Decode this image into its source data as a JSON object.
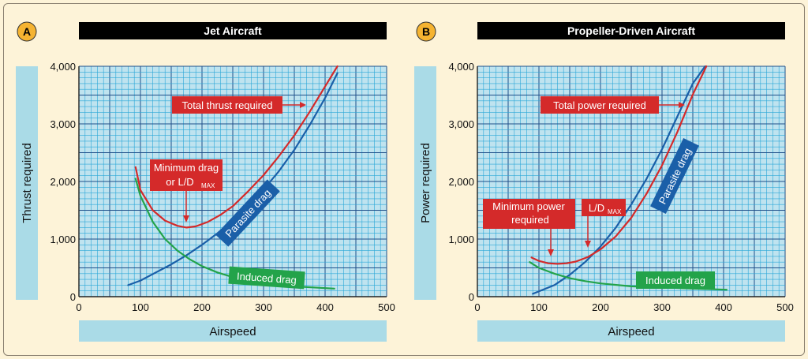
{
  "chart_data": [
    {
      "badge": "A",
      "type": "line",
      "title": "Jet Aircraft",
      "xlabel": "Airspeed",
      "ylabel": "Thrust required",
      "xlim": [
        0,
        500
      ],
      "ylim": [
        0,
        4000
      ],
      "x_ticks": [
        "0",
        "100",
        "200",
        "300",
        "400",
        "500"
      ],
      "y_ticks": [
        "0",
        "1,000",
        "2,000",
        "3,000",
        "4,000"
      ],
      "series": [
        {
          "name": "Parasite drag",
          "color": "#1a5fa8",
          "x": [
            80,
            100,
            125,
            150,
            175,
            200,
            225,
            250,
            275,
            300,
            325,
            350,
            375,
            400,
            420
          ],
          "y": [
            200,
            280,
            420,
            560,
            720,
            900,
            1100,
            1330,
            1580,
            1860,
            2180,
            2550,
            2980,
            3450,
            3880
          ]
        },
        {
          "name": "Induced drag",
          "color": "#23a34a",
          "x": [
            92,
            100,
            120,
            140,
            160,
            180,
            200,
            225,
            250,
            275,
            300,
            350,
            415
          ],
          "y": [
            2050,
            1750,
            1300,
            1000,
            800,
            650,
            530,
            420,
            340,
            280,
            240,
            180,
            140
          ]
        },
        {
          "name": "Total thrust required",
          "color": "#d42a2a",
          "x": [
            92,
            100,
            120,
            140,
            160,
            175,
            190,
            210,
            230,
            250,
            275,
            300,
            325,
            350,
            375,
            400,
            420
          ],
          "y": [
            2250,
            1850,
            1500,
            1320,
            1230,
            1200,
            1220,
            1300,
            1420,
            1570,
            1830,
            2110,
            2440,
            2800,
            3210,
            3650,
            4000
          ]
        }
      ],
      "annotations": [
        {
          "text": "Total thrust required"
        },
        {
          "line1": "Minimum drag",
          "line2": "or L/D",
          "sub": "MAX"
        },
        {
          "text": "Parasite drag"
        },
        {
          "text": "Induced drag"
        }
      ]
    },
    {
      "badge": "B",
      "type": "line",
      "title": "Propeller-Driven Aircraft",
      "xlabel": "Airspeed",
      "ylabel": "Power required",
      "xlim": [
        0,
        500
      ],
      "ylim": [
        0,
        4000
      ],
      "x_ticks": [
        "0",
        "100",
        "200",
        "300",
        "400",
        "500"
      ],
      "y_ticks": [
        "0",
        "1,000",
        "2,000",
        "3,000",
        "4,000"
      ],
      "series": [
        {
          "name": "Parasite drag",
          "color": "#1a5fa8",
          "x": [
            90,
            125,
            150,
            175,
            200,
            225,
            250,
            275,
            300,
            325,
            350,
            370
          ],
          "y": [
            50,
            200,
            380,
            600,
            870,
            1200,
            1600,
            2050,
            2560,
            3130,
            3700,
            4000
          ]
        },
        {
          "name": "Induced drag",
          "color": "#23a34a",
          "x": [
            85,
            100,
            125,
            150,
            175,
            200,
            250,
            300,
            350,
            405
          ],
          "y": [
            600,
            500,
            400,
            320,
            270,
            230,
            180,
            160,
            140,
            120
          ]
        },
        {
          "name": "Total power required",
          "color": "#d42a2a",
          "x": [
            88,
            100,
            115,
            130,
            145,
            160,
            180,
            200,
            225,
            250,
            275,
            300,
            325,
            350,
            372
          ],
          "y": [
            680,
            620,
            580,
            570,
            580,
            610,
            690,
            820,
            1050,
            1370,
            1790,
            2280,
            2860,
            3510,
            4000
          ]
        }
      ],
      "annotations": [
        {
          "text": "Total power required"
        },
        {
          "line1": "Minimum power",
          "line2": "required"
        },
        {
          "line1": "L/D",
          "sub": "MAX"
        },
        {
          "text": "Parasite drag"
        },
        {
          "text": "Induced drag"
        }
      ]
    }
  ]
}
